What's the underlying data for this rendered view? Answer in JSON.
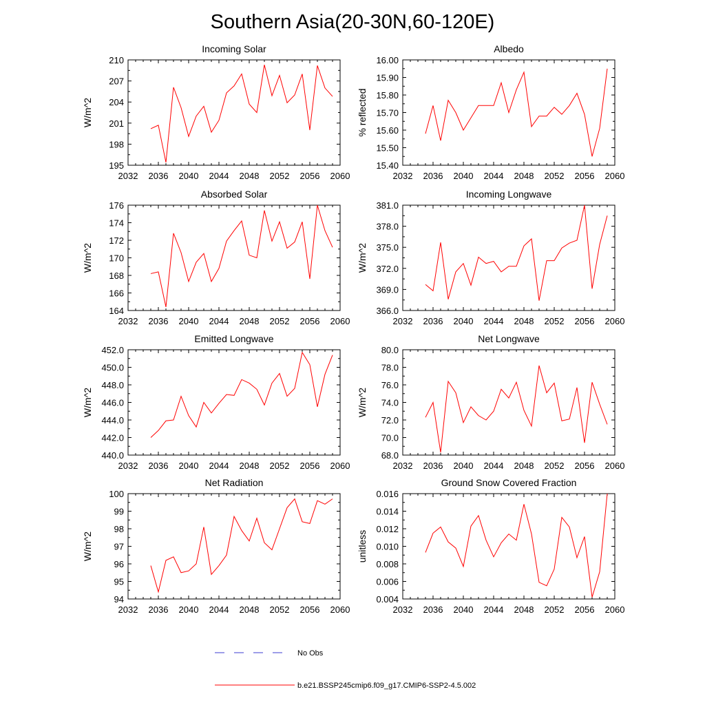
{
  "figure_title": "Southern Asia(20-30N,60-120E)",
  "colors": {
    "model": "#ff0000",
    "obs": "#3b3bd0",
    "axes": "#000000"
  },
  "legend": {
    "obs_label": "No Obs",
    "model_label": "b.e21.BSSP245cmip6.f09_g17.CMIP6-SSP2-4.5.002"
  },
  "chart_data": [
    {
      "type": "line",
      "title": "Incoming Solar",
      "ylabel": "W/m^2",
      "xlim": [
        2032,
        2060
      ],
      "xticks": [
        2032,
        2036,
        2040,
        2044,
        2048,
        2052,
        2056,
        2060
      ],
      "ylim": [
        195,
        210
      ],
      "yticks": [
        195,
        198,
        201,
        204,
        207,
        210
      ],
      "ytick_labels": [
        "195",
        "198",
        "201",
        "204",
        "207",
        "210"
      ],
      "series": [
        {
          "name": "b.e21.BSSP245cmip6.f09_g17.CMIP6-SSP2-4.5.002",
          "x": [
            2035,
            2036,
            2037,
            2038,
            2039,
            2040,
            2041,
            2042,
            2043,
            2044,
            2045,
            2046,
            2047,
            2048,
            2049,
            2050,
            2051,
            2052,
            2053,
            2054,
            2055,
            2056,
            2057,
            2058,
            2059
          ],
          "y": [
            200.2,
            200.7,
            195.4,
            206.1,
            203.2,
            199.1,
            202.0,
            203.4,
            199.7,
            201.4,
            205.3,
            206.3,
            208.0,
            203.7,
            202.5,
            209.3,
            204.9,
            207.8,
            203.9,
            205.0,
            208.0,
            200.0,
            209.2,
            206.0,
            204.8
          ]
        }
      ]
    },
    {
      "type": "line",
      "title": "Albedo",
      "ylabel": "% reflected",
      "xlim": [
        2032,
        2060
      ],
      "xticks": [
        2032,
        2036,
        2040,
        2044,
        2048,
        2052,
        2056,
        2060
      ],
      "ylim": [
        15.4,
        16.0
      ],
      "yticks": [
        15.4,
        15.5,
        15.6,
        15.7,
        15.8,
        15.9,
        16.0
      ],
      "ytick_labels": [
        "15.40",
        "15.50",
        "15.60",
        "15.70",
        "15.80",
        "15.90",
        "16.00"
      ],
      "series": [
        {
          "name": "b.e21.BSSP245cmip6.f09_g17.CMIP6-SSP2-4.5.002",
          "x": [
            2035,
            2036,
            2037,
            2038,
            2039,
            2040,
            2041,
            2042,
            2043,
            2044,
            2045,
            2046,
            2047,
            2048,
            2049,
            2050,
            2051,
            2052,
            2053,
            2054,
            2055,
            2056,
            2057,
            2058,
            2059
          ],
          "y": [
            15.58,
            15.74,
            15.54,
            15.77,
            15.7,
            15.6,
            15.67,
            15.74,
            15.74,
            15.74,
            15.87,
            15.7,
            15.83,
            15.93,
            15.62,
            15.68,
            15.68,
            15.73,
            15.69,
            15.74,
            15.81,
            15.69,
            15.45,
            15.61,
            15.95
          ]
        }
      ]
    },
    {
      "type": "line",
      "title": "Absorbed Solar",
      "ylabel": "W/m^2",
      "xlim": [
        2032,
        2060
      ],
      "xticks": [
        2032,
        2036,
        2040,
        2044,
        2048,
        2052,
        2056,
        2060
      ],
      "ylim": [
        164,
        176
      ],
      "yticks": [
        164,
        166,
        168,
        170,
        172,
        174,
        176
      ],
      "ytick_labels": [
        "164",
        "166",
        "168",
        "170",
        "172",
        "174",
        "176"
      ],
      "series": [
        {
          "name": "b.e21.BSSP245cmip6.f09_g17.CMIP6-SSP2-4.5.002",
          "x": [
            2035,
            2036,
            2037,
            2038,
            2039,
            2040,
            2041,
            2042,
            2043,
            2044,
            2045,
            2046,
            2047,
            2048,
            2049,
            2050,
            2051,
            2052,
            2053,
            2054,
            2055,
            2056,
            2057,
            2058,
            2059
          ],
          "y": [
            168.2,
            168.4,
            164.4,
            172.8,
            170.6,
            167.3,
            169.5,
            170.5,
            167.3,
            168.8,
            171.9,
            173.1,
            174.2,
            170.3,
            170.0,
            175.4,
            171.9,
            174.1,
            171.1,
            171.8,
            174.1,
            167.6,
            176.0,
            173.1,
            171.2
          ]
        }
      ]
    },
    {
      "type": "line",
      "title": "Incoming Longwave",
      "ylabel": "W/m^2",
      "xlim": [
        2032,
        2060
      ],
      "xticks": [
        2032,
        2036,
        2040,
        2044,
        2048,
        2052,
        2056,
        2060
      ],
      "ylim": [
        366.0,
        381.0
      ],
      "yticks": [
        366.0,
        369.0,
        372.0,
        375.0,
        378.0,
        381.0
      ],
      "ytick_labels": [
        "366.0",
        "369.0",
        "372.0",
        "375.0",
        "378.0",
        "381.0"
      ],
      "series": [
        {
          "name": "b.e21.BSSP245cmip6.f09_g17.CMIP6-SSP2-4.5.002",
          "x": [
            2035,
            2036,
            2037,
            2038,
            2039,
            2040,
            2041,
            2042,
            2043,
            2044,
            2045,
            2046,
            2047,
            2048,
            2049,
            2050,
            2051,
            2052,
            2053,
            2054,
            2055,
            2056,
            2057,
            2058,
            2059
          ],
          "y": [
            369.7,
            368.8,
            375.7,
            367.6,
            371.5,
            372.7,
            369.6,
            373.6,
            372.7,
            373.0,
            371.5,
            372.3,
            372.3,
            375.2,
            376.2,
            367.4,
            373.1,
            373.1,
            374.9,
            375.6,
            376.0,
            381.0,
            369.1,
            375.4,
            379.5
          ]
        }
      ]
    },
    {
      "type": "line",
      "title": "Emitted Longwave",
      "ylabel": "W/m^2",
      "xlim": [
        2032,
        2060
      ],
      "xticks": [
        2032,
        2036,
        2040,
        2044,
        2048,
        2052,
        2056,
        2060
      ],
      "ylim": [
        440.0,
        452.0
      ],
      "yticks": [
        440.0,
        442.0,
        444.0,
        446.0,
        448.0,
        450.0,
        452.0
      ],
      "ytick_labels": [
        "440.0",
        "442.0",
        "444.0",
        "446.0",
        "448.0",
        "450.0",
        "452.0"
      ],
      "series": [
        {
          "name": "b.e21.BSSP245cmip6.f09_g17.CMIP6-SSP2-4.5.002",
          "x": [
            2035,
            2036,
            2037,
            2038,
            2039,
            2040,
            2041,
            2042,
            2043,
            2044,
            2045,
            2046,
            2047,
            2048,
            2049,
            2050,
            2051,
            2052,
            2053,
            2054,
            2055,
            2056,
            2057,
            2058,
            2059
          ],
          "y": [
            442.0,
            442.8,
            443.9,
            444.0,
            446.7,
            444.5,
            443.2,
            446.0,
            444.8,
            445.9,
            446.9,
            446.8,
            448.6,
            448.2,
            447.5,
            445.7,
            448.2,
            449.3,
            446.7,
            447.6,
            451.7,
            450.3,
            445.5,
            449.2,
            451.4
          ]
        }
      ]
    },
    {
      "type": "line",
      "title": "Net Longwave",
      "ylabel": "W/m^2",
      "xlim": [
        2032,
        2060
      ],
      "xticks": [
        2032,
        2036,
        2040,
        2044,
        2048,
        2052,
        2056,
        2060
      ],
      "ylim": [
        68.0,
        80.0
      ],
      "yticks": [
        68.0,
        70.0,
        72.0,
        74.0,
        76.0,
        78.0,
        80.0
      ],
      "ytick_labels": [
        "68.0",
        "70.0",
        "72.0",
        "74.0",
        "76.0",
        "78.0",
        "80.0"
      ],
      "series": [
        {
          "name": "b.e21.BSSP245cmip6.f09_g17.CMIP6-SSP2-4.5.002",
          "x": [
            2035,
            2036,
            2037,
            2038,
            2039,
            2040,
            2041,
            2042,
            2043,
            2044,
            2045,
            2046,
            2047,
            2048,
            2049,
            2050,
            2051,
            2052,
            2053,
            2054,
            2055,
            2056,
            2057,
            2058,
            2059
          ],
          "y": [
            72.3,
            74.0,
            68.3,
            76.4,
            75.1,
            71.7,
            73.5,
            72.5,
            72.0,
            73.0,
            75.5,
            74.5,
            76.3,
            73.1,
            71.3,
            78.2,
            75.1,
            76.2,
            71.9,
            72.1,
            75.7,
            69.4,
            76.3,
            73.8,
            71.5
          ]
        }
      ]
    },
    {
      "type": "line",
      "title": "Net Radiation",
      "ylabel": "W/m^2",
      "xlim": [
        2032,
        2060
      ],
      "xticks": [
        2032,
        2036,
        2040,
        2044,
        2048,
        2052,
        2056,
        2060
      ],
      "ylim": [
        94,
        100
      ],
      "yticks": [
        94,
        95,
        96,
        97,
        98,
        99,
        100
      ],
      "ytick_labels": [
        "94",
        "95",
        "96",
        "97",
        "98",
        "99",
        "100"
      ],
      "series": [
        {
          "name": "b.e21.BSSP245cmip6.f09_g17.CMIP6-SSP2-4.5.002",
          "x": [
            2035,
            2036,
            2037,
            2038,
            2039,
            2040,
            2041,
            2042,
            2043,
            2044,
            2045,
            2046,
            2047,
            2048,
            2049,
            2050,
            2051,
            2052,
            2053,
            2054,
            2055,
            2056,
            2057,
            2058,
            2059
          ],
          "y": [
            95.9,
            94.4,
            96.2,
            96.4,
            95.5,
            95.6,
            96.0,
            98.1,
            95.4,
            95.9,
            96.5,
            98.7,
            97.9,
            97.3,
            98.6,
            97.2,
            96.8,
            98.0,
            99.2,
            99.7,
            98.4,
            98.3,
            99.6,
            99.4,
            99.7
          ]
        }
      ]
    },
    {
      "type": "line",
      "title": "Ground Snow Covered Fraction",
      "ylabel": "unitless",
      "xlim": [
        2032,
        2060
      ],
      "xticks": [
        2032,
        2036,
        2040,
        2044,
        2048,
        2052,
        2056,
        2060
      ],
      "ylim": [
        0.004,
        0.016
      ],
      "yticks": [
        0.004,
        0.006,
        0.008,
        0.01,
        0.012,
        0.014,
        0.016
      ],
      "ytick_labels": [
        "0.004",
        "0.006",
        "0.008",
        "0.010",
        "0.012",
        "0.014",
        "0.016"
      ],
      "series": [
        {
          "name": "b.e21.BSSP245cmip6.f09_g17.CMIP6-SSP2-4.5.002",
          "x": [
            2035,
            2036,
            2037,
            2038,
            2039,
            2040,
            2041,
            2042,
            2043,
            2044,
            2045,
            2046,
            2047,
            2048,
            2049,
            2050,
            2051,
            2052,
            2053,
            2054,
            2055,
            2056,
            2057,
            2058,
            2059
          ],
          "y": [
            0.0093,
            0.0115,
            0.0122,
            0.0105,
            0.0098,
            0.0077,
            0.0123,
            0.0135,
            0.0107,
            0.0088,
            0.0104,
            0.0114,
            0.0107,
            0.0148,
            0.0114,
            0.0059,
            0.0055,
            0.0074,
            0.0133,
            0.0122,
            0.0087,
            0.0111,
            0.0042,
            0.0071,
            0.016
          ]
        }
      ]
    }
  ]
}
